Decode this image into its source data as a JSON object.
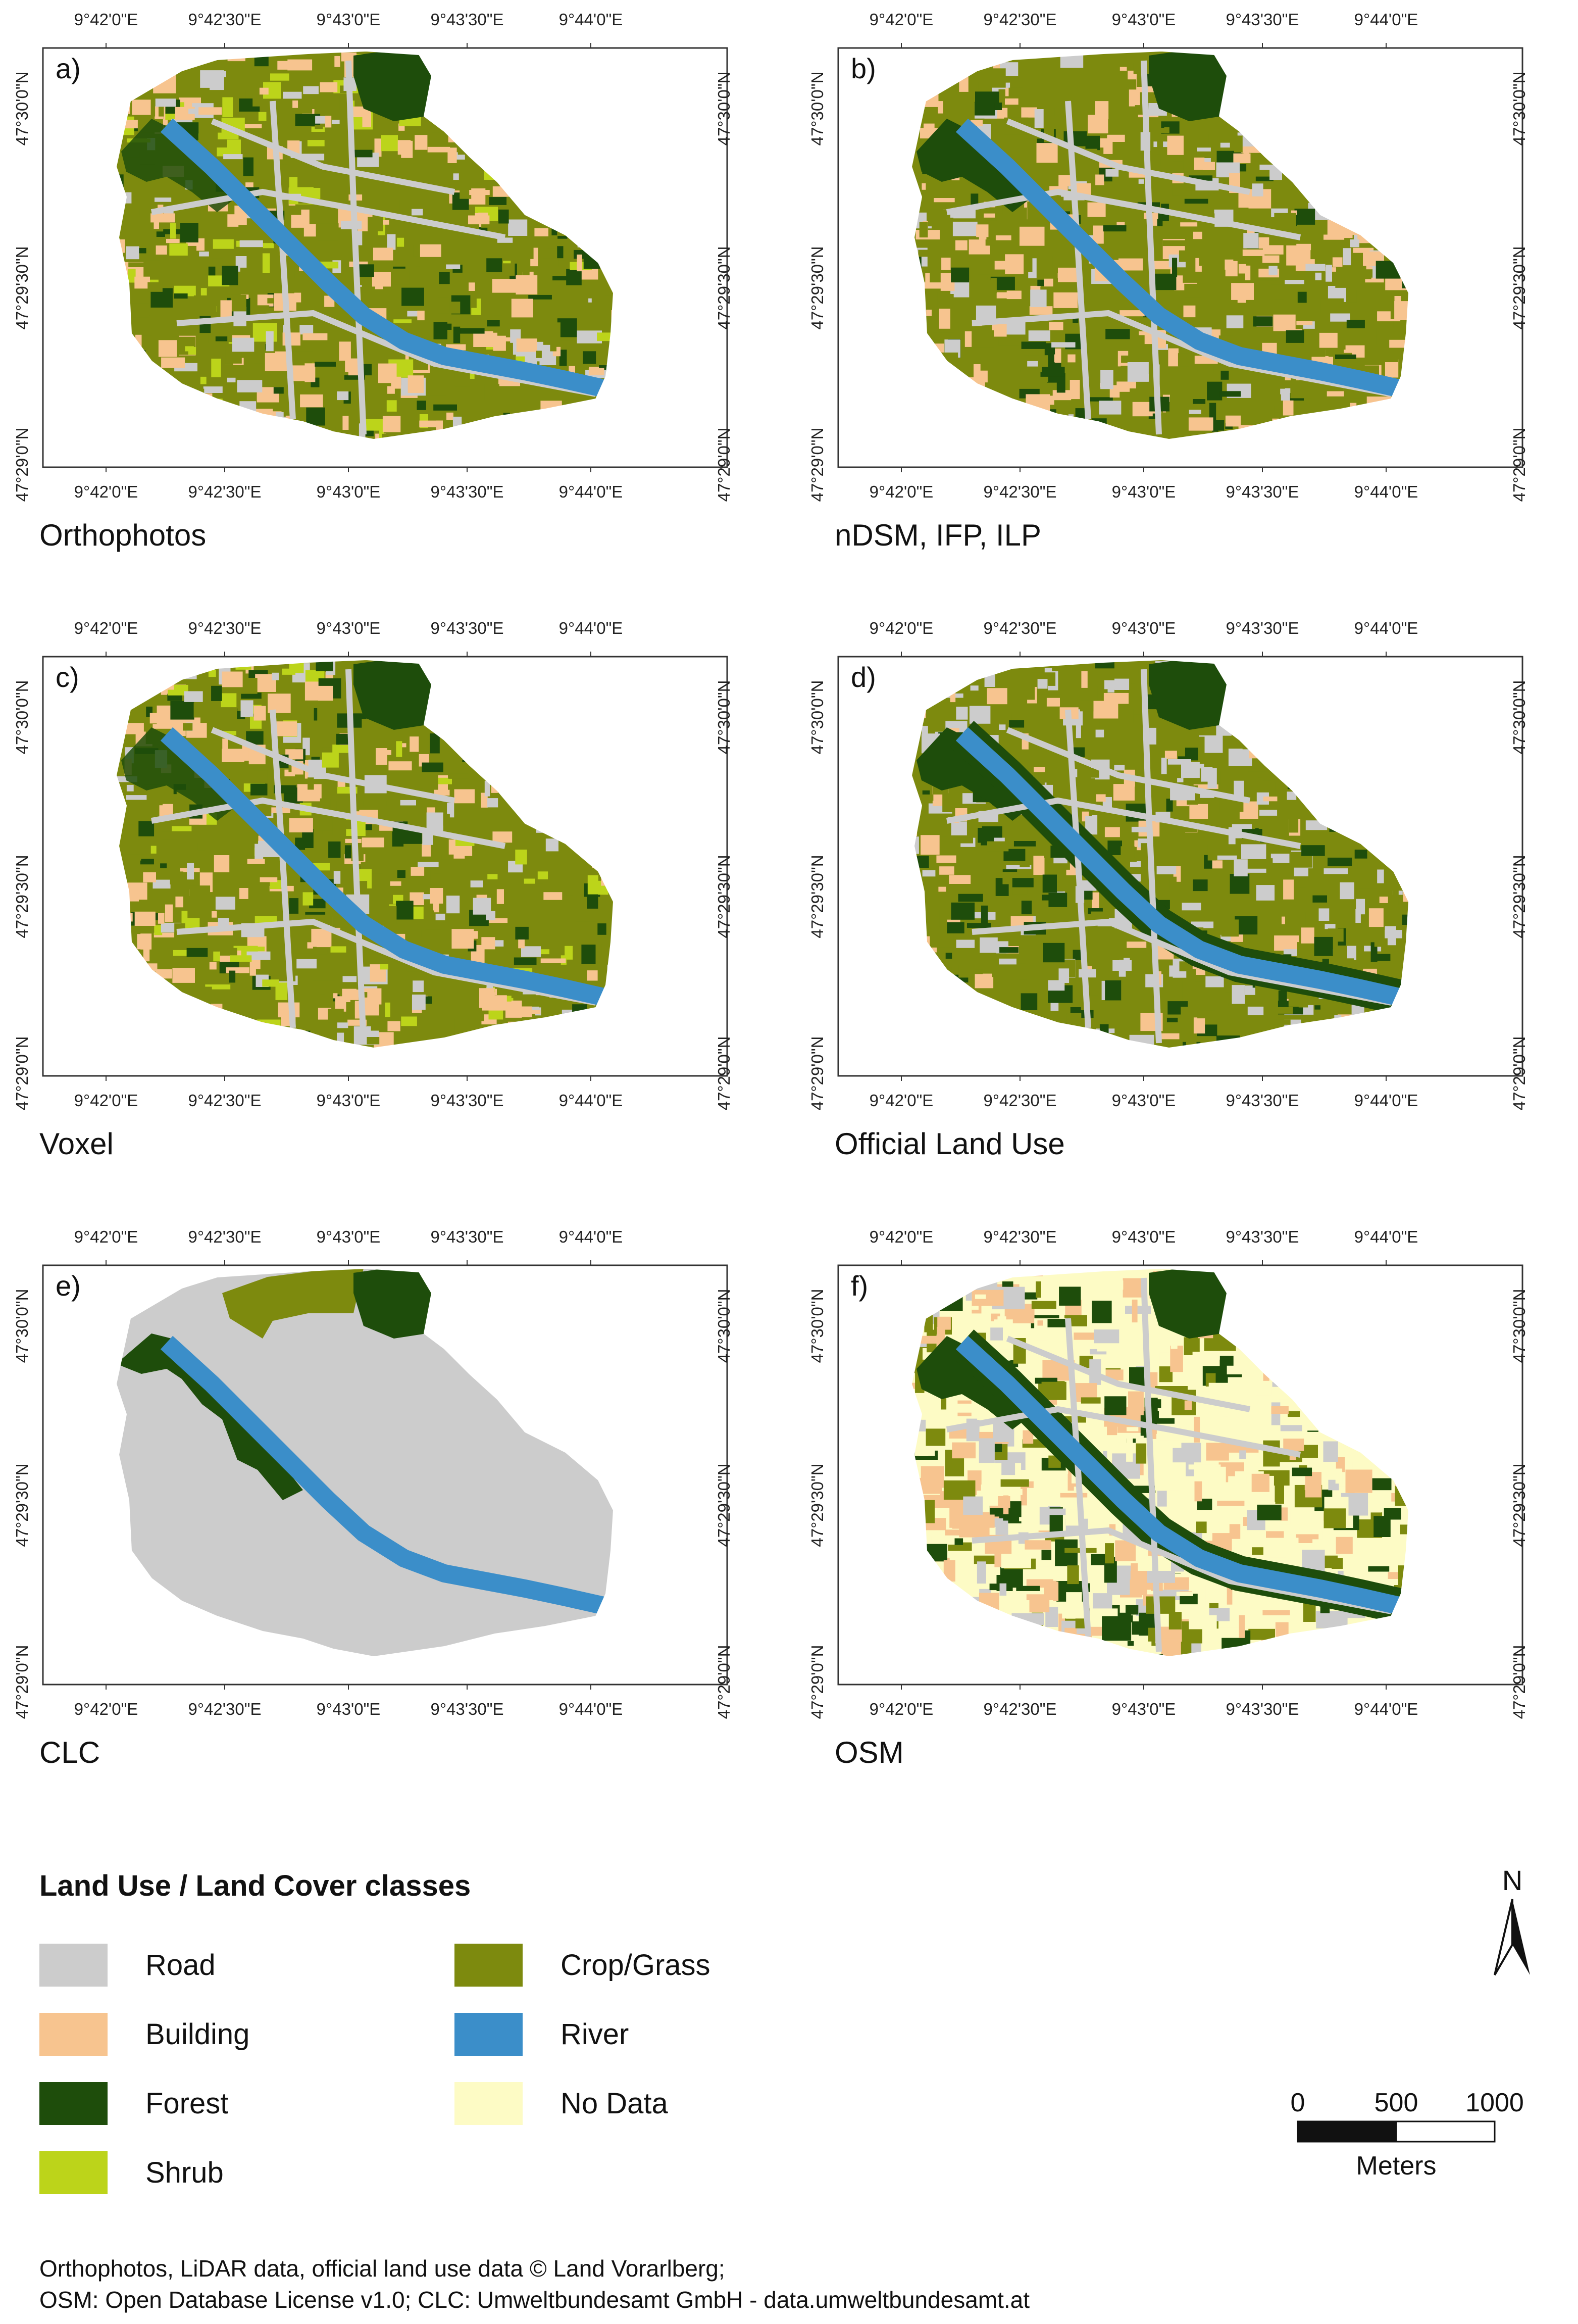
{
  "figure": {
    "panels": [
      {
        "id": "a",
        "letter": "a)",
        "caption": "Orthophotos"
      },
      {
        "id": "b",
        "letter": "b)",
        "caption": "nDSM, IFP, ILP"
      },
      {
        "id": "c",
        "letter": "c)",
        "caption": "Voxel"
      },
      {
        "id": "d",
        "letter": "d)",
        "caption": "Official Land Use"
      },
      {
        "id": "e",
        "letter": "e)",
        "caption": "CLC"
      },
      {
        "id": "f",
        "letter": "f)",
        "caption": "OSM"
      }
    ],
    "lon_ticks": [
      "9°42'0\"E",
      "9°42'30\"E",
      "9°43'0\"E",
      "9°43'30\"E",
      "9°44'0\"E"
    ],
    "lat_ticks": [
      "47°30'0\"N",
      "47°29'30\"N",
      "47°29'0\"N"
    ]
  },
  "legend": {
    "title": "Land Use / Land Cover classes",
    "classes": [
      {
        "label": "Road",
        "color": "#cccccc"
      },
      {
        "label": "Building",
        "color": "#f7c48f"
      },
      {
        "label": "Forest",
        "color": "#1e4d0b"
      },
      {
        "label": "Shrub",
        "color": "#bcd41a"
      },
      {
        "label": "Crop/Grass",
        "color": "#7d8a0e"
      },
      {
        "label": "River",
        "color": "#3b8ec9"
      },
      {
        "label": "No Data",
        "color": "#fdfbc5"
      }
    ]
  },
  "north_arrow": {
    "label": "N"
  },
  "scale_bar": {
    "ticks": [
      "0",
      "500",
      "1000"
    ],
    "unit": "Meters"
  },
  "credits": {
    "line1": "Orthophotos, LiDAR data, official land use data © Land Vorarlberg;",
    "line2": "OSM: Open Database License v1.0; CLC: Umweltbundesamt GmbH - data.umweltbundesamt.at"
  }
}
